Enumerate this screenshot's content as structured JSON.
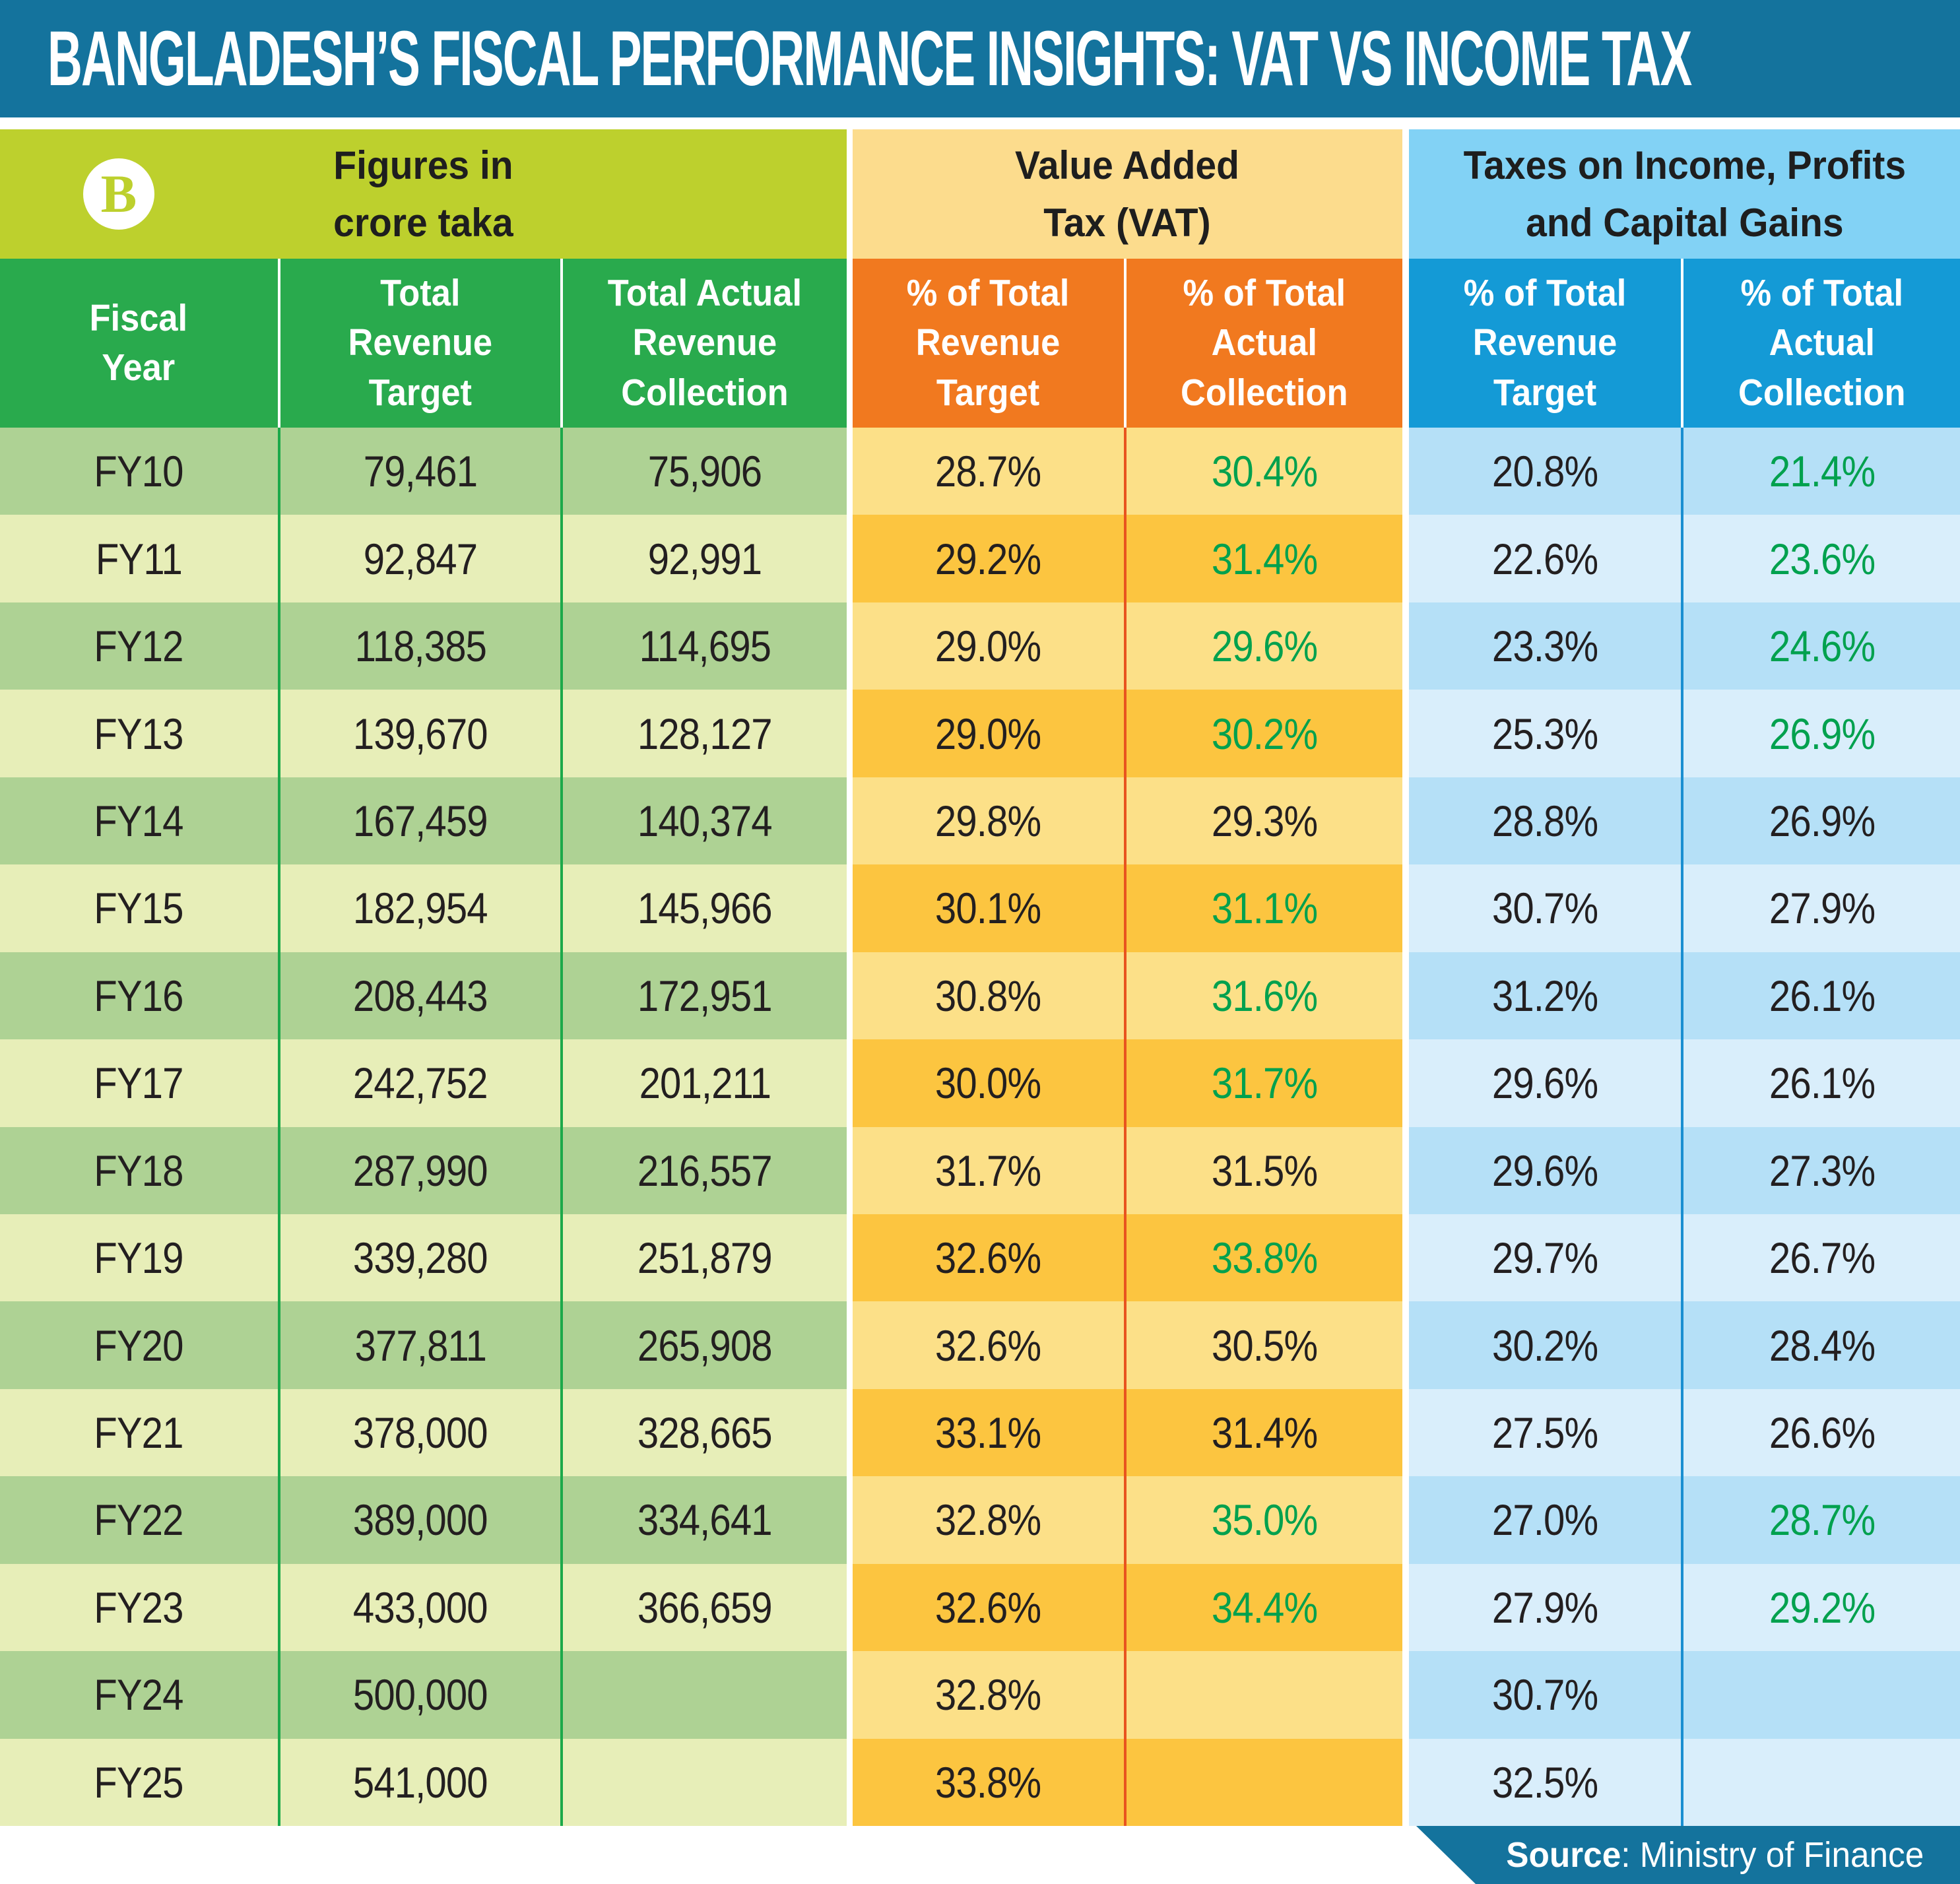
{
  "title": "BANGLADESH’S FISCAL PERFORMANCE INSIGHTS: VAT VS INCOME TAX",
  "logo_letter": "B",
  "groups": {
    "figures": {
      "label": "Figures in\ncrore taka"
    },
    "vat": {
      "label": "Value Added\nTax (VAT)"
    },
    "income": {
      "label": "Taxes on Income, Profits\nand Capital Gains"
    }
  },
  "columns": {
    "fiscal_year": "Fiscal\nYear",
    "total_revenue_target": "Total\nRevenue\nTarget",
    "total_actual_revenue_collection": "Total Actual\nRevenue\nCollection",
    "vat_pct_revenue_target": "% of Total\nRevenue\nTarget",
    "vat_pct_actual_collection": "% of Total\nActual\nCollection",
    "income_pct_revenue_target": "% of Total\nRevenue\nTarget",
    "income_pct_actual_collection": "% of Total\nActual\nCollection"
  },
  "source": {
    "bold": "Source",
    "rest": ": Ministry of Finance"
  },
  "colors": {
    "title_bar": "#14739d",
    "lime_header": "#bdd02d",
    "green_header": "#29aa4d",
    "row_green_dark": "#aed294",
    "row_green_light": "#e7eeb8",
    "gold_header": "#fcdc8d",
    "orange_header": "#f1791f",
    "row_vat_light": "#fce088",
    "row_vat_dark": "#fcc540",
    "lightblue_header": "#82d2f5",
    "blue_header": "#149ad6",
    "row_blue_dark": "#b5e0f7",
    "row_blue_light": "#d9eefb",
    "positive_text": "#00a14e",
    "dark_text": "#231f20"
  },
  "rows": [
    {
      "fy": "FY10",
      "target": "79,461",
      "actual": "75,906",
      "vat_target": "28.7%",
      "vat_actual": "30.4%",
      "vat_actual_green": true,
      "income_target": "20.8%",
      "income_actual": "21.4%",
      "income_actual_green": true
    },
    {
      "fy": "FY11",
      "target": "92,847",
      "actual": "92,991",
      "vat_target": "29.2%",
      "vat_actual": "31.4%",
      "vat_actual_green": true,
      "income_target": "22.6%",
      "income_actual": "23.6%",
      "income_actual_green": true
    },
    {
      "fy": "FY12",
      "target": "118,385",
      "actual": "114,695",
      "vat_target": "29.0%",
      "vat_actual": "29.6%",
      "vat_actual_green": true,
      "income_target": "23.3%",
      "income_actual": "24.6%",
      "income_actual_green": true
    },
    {
      "fy": "FY13",
      "target": "139,670",
      "actual": "128,127",
      "vat_target": "29.0%",
      "vat_actual": "30.2%",
      "vat_actual_green": true,
      "income_target": "25.3%",
      "income_actual": "26.9%",
      "income_actual_green": true
    },
    {
      "fy": "FY14",
      "target": "167,459",
      "actual": "140,374",
      "vat_target": "29.8%",
      "vat_actual": "29.3%",
      "vat_actual_green": false,
      "income_target": "28.8%",
      "income_actual": "26.9%",
      "income_actual_green": false
    },
    {
      "fy": "FY15",
      "target": "182,954",
      "actual": "145,966",
      "vat_target": "30.1%",
      "vat_actual": "31.1%",
      "vat_actual_green": true,
      "income_target": "30.7%",
      "income_actual": "27.9%",
      "income_actual_green": false
    },
    {
      "fy": "FY16",
      "target": "208,443",
      "actual": "172,951",
      "vat_target": "30.8%",
      "vat_actual": "31.6%",
      "vat_actual_green": true,
      "income_target": "31.2%",
      "income_actual": "26.1%",
      "income_actual_green": false
    },
    {
      "fy": "FY17",
      "target": "242,752",
      "actual": "201,211",
      "vat_target": "30.0%",
      "vat_actual": "31.7%",
      "vat_actual_green": true,
      "income_target": "29.6%",
      "income_actual": "26.1%",
      "income_actual_green": false
    },
    {
      "fy": "FY18",
      "target": "287,990",
      "actual": "216,557",
      "vat_target": "31.7%",
      "vat_actual": "31.5%",
      "vat_actual_green": false,
      "income_target": "29.6%",
      "income_actual": "27.3%",
      "income_actual_green": false
    },
    {
      "fy": "FY19",
      "target": "339,280",
      "actual": "251,879",
      "vat_target": "32.6%",
      "vat_actual": "33.8%",
      "vat_actual_green": true,
      "income_target": "29.7%",
      "income_actual": "26.7%",
      "income_actual_green": false
    },
    {
      "fy": "FY20",
      "target": "377,811",
      "actual": "265,908",
      "vat_target": "32.6%",
      "vat_actual": "30.5%",
      "vat_actual_green": false,
      "income_target": "30.2%",
      "income_actual": "28.4%",
      "income_actual_green": false
    },
    {
      "fy": "FY21",
      "target": "378,000",
      "actual": "328,665",
      "vat_target": "33.1%",
      "vat_actual": "31.4%",
      "vat_actual_green": false,
      "income_target": "27.5%",
      "income_actual": "26.6%",
      "income_actual_green": false
    },
    {
      "fy": "FY22",
      "target": "389,000",
      "actual": "334,641",
      "vat_target": "32.8%",
      "vat_actual": "35.0%",
      "vat_actual_green": true,
      "income_target": "27.0%",
      "income_actual": "28.7%",
      "income_actual_green": true
    },
    {
      "fy": "FY23",
      "target": "433,000",
      "actual": "366,659",
      "vat_target": "32.6%",
      "vat_actual": "34.4%",
      "vat_actual_green": true,
      "income_target": "27.9%",
      "income_actual": "29.2%",
      "income_actual_green": true
    },
    {
      "fy": "FY24",
      "target": "500,000",
      "actual": "",
      "vat_target": "32.8%",
      "vat_actual": "",
      "vat_actual_green": false,
      "income_target": "30.7%",
      "income_actual": "",
      "income_actual_green": false
    },
    {
      "fy": "FY25",
      "target": "541,000",
      "actual": "",
      "vat_target": "33.8%",
      "vat_actual": "",
      "vat_actual_green": false,
      "income_target": "32.5%",
      "income_actual": "",
      "income_actual_green": false
    }
  ],
  "chart_data": {
    "type": "table",
    "title": "Bangladesh's Fiscal Performance Insights: VAT vs Income Tax",
    "unit": "crore taka",
    "categories": [
      "FY10",
      "FY11",
      "FY12",
      "FY13",
      "FY14",
      "FY15",
      "FY16",
      "FY17",
      "FY18",
      "FY19",
      "FY20",
      "FY21",
      "FY22",
      "FY23",
      "FY24",
      "FY25"
    ],
    "series": [
      {
        "name": "Total Revenue Target (crore taka)",
        "values": [
          79461,
          92847,
          118385,
          139670,
          167459,
          182954,
          208443,
          242752,
          287990,
          339280,
          377811,
          378000,
          389000,
          433000,
          500000,
          541000
        ]
      },
      {
        "name": "Total Actual Revenue Collection (crore taka)",
        "values": [
          75906,
          92991,
          114695,
          128127,
          140374,
          145966,
          172951,
          201211,
          216557,
          251879,
          265908,
          328665,
          334641,
          366659,
          null,
          null
        ]
      },
      {
        "name": "VAT % of Total Revenue Target",
        "values": [
          28.7,
          29.2,
          29.0,
          29.0,
          29.8,
          30.1,
          30.8,
          30.0,
          31.7,
          32.6,
          32.6,
          33.1,
          32.8,
          32.6,
          32.8,
          33.8
        ]
      },
      {
        "name": "VAT % of Total Actual Collection",
        "values": [
          30.4,
          31.4,
          29.6,
          30.2,
          29.3,
          31.1,
          31.6,
          31.7,
          31.5,
          33.8,
          30.5,
          31.4,
          35.0,
          34.4,
          null,
          null
        ]
      },
      {
        "name": "Income Tax % of Total Revenue Target",
        "values": [
          20.8,
          22.6,
          23.3,
          25.3,
          28.8,
          30.7,
          31.2,
          29.6,
          29.6,
          29.7,
          30.2,
          27.5,
          27.0,
          27.9,
          30.7,
          32.5
        ]
      },
      {
        "name": "Income Tax % of Total Actual Collection",
        "values": [
          21.4,
          23.6,
          24.6,
          26.9,
          26.9,
          27.9,
          26.1,
          26.1,
          27.3,
          26.7,
          28.4,
          26.6,
          28.7,
          29.2,
          null,
          null
        ]
      }
    ],
    "legend_position": "none",
    "grid": false,
    "source": "Ministry of Finance"
  }
}
